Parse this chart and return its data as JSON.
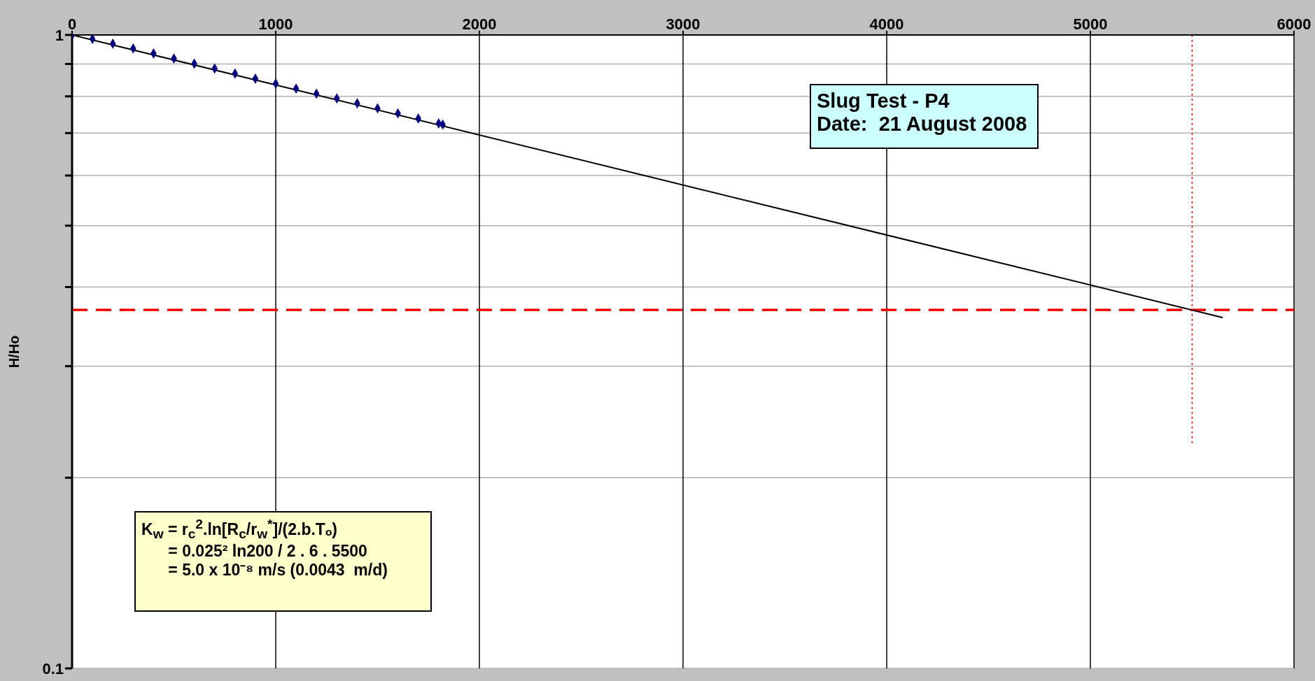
{
  "chart_data": {
    "type": "scatter",
    "ylabel": "H/Ho",
    "xlim": [
      0,
      6000
    ],
    "xticks": [
      0,
      1000,
      2000,
      3000,
      4000,
      5000,
      6000
    ],
    "ylim": [
      0.1,
      1
    ],
    "log": "y",
    "yticks": [
      0.1,
      {
        "value": 0.2,
        "label": null
      },
      {
        "value": 0.3,
        "label": null
      },
      {
        "value": 0.4,
        "label": null
      },
      {
        "value": 0.5,
        "label": null
      },
      {
        "value": 0.6,
        "label": null
      },
      {
        "value": 0.7,
        "label": null
      },
      {
        "value": 0.8,
        "label": null
      },
      {
        "value": 0.9,
        "label": null
      },
      1
    ],
    "grid": true,
    "series": [
      {
        "color": "#000080",
        "marker": "diamond",
        "x": [
          0,
          100,
          200,
          300,
          400,
          500,
          600,
          700,
          800,
          900,
          1000,
          1100,
          1200,
          1300,
          1400,
          1500,
          1600,
          1700,
          1800,
          1820
        ],
        "values": [
          1,
          0.986,
          0.969,
          0.952,
          0.935,
          0.918,
          0.901,
          0.885,
          0.869,
          0.853,
          0.838,
          0.823,
          0.808,
          0.794,
          0.78,
          0.766,
          0.752,
          0.738,
          0.725,
          0.722
        ]
      },
      {
        "type": "line",
        "color": "#000000",
        "line_style": "solid",
        "x": [
          0,
          5650
        ],
        "values": [
          1,
          0.358
        ]
      },
      {
        "type": "line",
        "color": "#ff0000",
        "line_style": "dotted",
        "x": [
          5500,
          5500
        ],
        "values": [
          1,
          0.226
        ]
      }
    ],
    "ref_lines": [
      {
        "axis": "y",
        "value": 0.368,
        "color": "#ff0000",
        "line_style": "dashed"
      }
    ],
    "annotations": [
      "Slug Test - P4\nDate:  21 August 2008",
      "K$_{w}$ = r$_{c}$$^{2}$.ln[R$_{c}$/r$_{w}$$^{*}$]/(2.b.Tₒ)\n      = 0.025² ln200 / 2 . 6 . 5500\n      = 5.0 x 10⁻⁸ m/s (0.0043  m/d)"
    ]
  }
}
